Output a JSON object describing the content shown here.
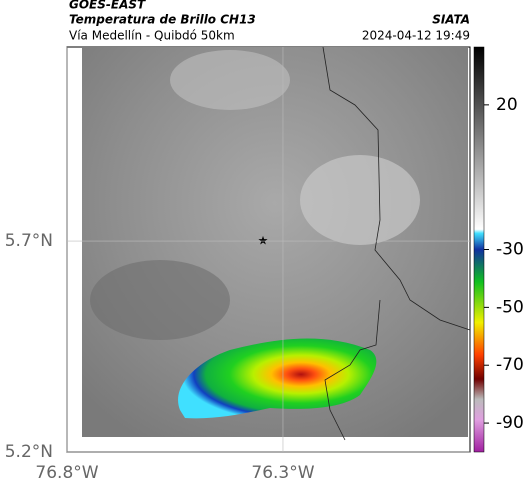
{
  "header": {
    "source": "GOES-EAST",
    "title": "Temperatura de Brillo CH13",
    "subtitle": "Vía Medellín - Quibdó 50km",
    "org": "SIATA",
    "timestamp": "2024-04-12 19:49"
  },
  "map": {
    "xlim": [
      -76.8,
      -75.867
    ],
    "ylim": [
      5.2,
      6.16
    ],
    "xticks": [
      {
        "value": -76.8,
        "label": "76.8°W"
      },
      {
        "value": -76.3,
        "label": "76.3°W"
      }
    ],
    "yticks": [
      {
        "value": 5.7,
        "label": "5.7°N"
      },
      {
        "value": 5.2,
        "label": "5.2°N"
      }
    ]
  },
  "colorbar": {
    "lim": [
      40,
      -100
    ],
    "ticks": [
      20,
      -30,
      -50,
      -70,
      -90
    ]
  }
}
